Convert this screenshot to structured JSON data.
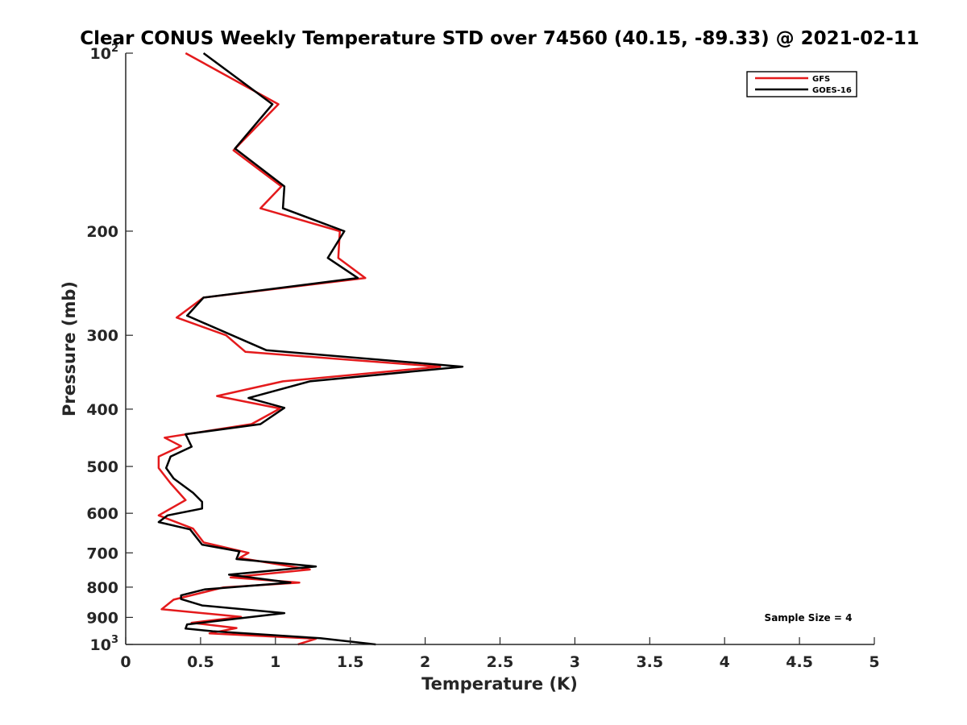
{
  "chart_data": {
    "type": "line",
    "title": "Clear CONUS Weekly Temperature STD over 74560 (40.15, -89.33) @ 2021-02-11",
    "xlabel": "Temperature (K)",
    "ylabel": "Pressure (mb)",
    "xlim": [
      0,
      5
    ],
    "ylim": [
      100,
      1000
    ],
    "y_scale": "log",
    "y_reversed": true,
    "x_ticks": [
      "0",
      "0.5",
      "1",
      "1.5",
      "2",
      "2.5",
      "3",
      "3.5",
      "4",
      "4.5",
      "5"
    ],
    "y_ticks": [
      {
        "value": 100,
        "base": "10",
        "exp": "2"
      },
      {
        "value": 200,
        "label": "200"
      },
      {
        "value": 300,
        "label": "300"
      },
      {
        "value": 400,
        "label": "400"
      },
      {
        "value": 500,
        "label": "500"
      },
      {
        "value": 600,
        "label": "600"
      },
      {
        "value": 700,
        "label": "700"
      },
      {
        "value": 800,
        "label": "800"
      },
      {
        "value": 900,
        "label": "900"
      },
      {
        "value": 1000,
        "base": "10",
        "exp": "3"
      }
    ],
    "legend_position": "top-right",
    "annotation": "Sample Size = 4",
    "series": [
      {
        "name": "GFS",
        "color": "#e41a1c",
        "points": [
          {
            "x": 0.4,
            "p": 100
          },
          {
            "x": 1.02,
            "p": 122
          },
          {
            "x": 0.72,
            "p": 146
          },
          {
            "x": 1.04,
            "p": 168
          },
          {
            "x": 0.9,
            "p": 183
          },
          {
            "x": 1.43,
            "p": 200
          },
          {
            "x": 1.42,
            "p": 222
          },
          {
            "x": 1.6,
            "p": 240
          },
          {
            "x": 0.52,
            "p": 259
          },
          {
            "x": 0.34,
            "p": 280
          },
          {
            "x": 0.67,
            "p": 300
          },
          {
            "x": 0.8,
            "p": 320
          },
          {
            "x": 2.1,
            "p": 339
          },
          {
            "x": 1.05,
            "p": 359
          },
          {
            "x": 0.61,
            "p": 380
          },
          {
            "x": 1.03,
            "p": 399
          },
          {
            "x": 0.84,
            "p": 424
          },
          {
            "x": 0.26,
            "p": 447
          },
          {
            "x": 0.37,
            "p": 462
          },
          {
            "x": 0.22,
            "p": 481
          },
          {
            "x": 0.22,
            "p": 503
          },
          {
            "x": 0.3,
            "p": 534
          },
          {
            "x": 0.4,
            "p": 570
          },
          {
            "x": 0.22,
            "p": 605
          },
          {
            "x": 0.45,
            "p": 637
          },
          {
            "x": 0.52,
            "p": 672
          },
          {
            "x": 0.82,
            "p": 700
          },
          {
            "x": 0.76,
            "p": 714
          },
          {
            "x": 1.23,
            "p": 747
          },
          {
            "x": 0.7,
            "p": 770
          },
          {
            "x": 1.16,
            "p": 786
          },
          {
            "x": 0.65,
            "p": 801
          },
          {
            "x": 0.32,
            "p": 840
          },
          {
            "x": 0.24,
            "p": 872
          },
          {
            "x": 0.77,
            "p": 898
          },
          {
            "x": 0.44,
            "p": 919
          },
          {
            "x": 0.74,
            "p": 938
          },
          {
            "x": 0.56,
            "p": 958
          },
          {
            "x": 1.27,
            "p": 978
          },
          {
            "x": 1.15,
            "p": 1000
          }
        ]
      },
      {
        "name": "GOES-16",
        "color": "#000000",
        "points": [
          {
            "x": 0.52,
            "p": 100
          },
          {
            "x": 0.98,
            "p": 122
          },
          {
            "x": 0.73,
            "p": 145
          },
          {
            "x": 1.06,
            "p": 168
          },
          {
            "x": 1.05,
            "p": 183
          },
          {
            "x": 1.46,
            "p": 200
          },
          {
            "x": 1.35,
            "p": 222
          },
          {
            "x": 1.55,
            "p": 240
          },
          {
            "x": 0.52,
            "p": 259
          },
          {
            "x": 0.41,
            "p": 278
          },
          {
            "x": 0.94,
            "p": 318
          },
          {
            "x": 2.25,
            "p": 339
          },
          {
            "x": 1.23,
            "p": 359
          },
          {
            "x": 0.82,
            "p": 383
          },
          {
            "x": 1.06,
            "p": 398
          },
          {
            "x": 0.9,
            "p": 424
          },
          {
            "x": 0.4,
            "p": 441
          },
          {
            "x": 0.44,
            "p": 463
          },
          {
            "x": 0.3,
            "p": 481
          },
          {
            "x": 0.27,
            "p": 503
          },
          {
            "x": 0.32,
            "p": 524
          },
          {
            "x": 0.45,
            "p": 554
          },
          {
            "x": 0.51,
            "p": 574
          },
          {
            "x": 0.51,
            "p": 589
          },
          {
            "x": 0.28,
            "p": 605
          },
          {
            "x": 0.22,
            "p": 621
          },
          {
            "x": 0.43,
            "p": 639
          },
          {
            "x": 0.51,
            "p": 678
          },
          {
            "x": 0.76,
            "p": 696
          },
          {
            "x": 0.74,
            "p": 717
          },
          {
            "x": 1.27,
            "p": 738
          },
          {
            "x": 0.69,
            "p": 762
          },
          {
            "x": 1.1,
            "p": 786
          },
          {
            "x": 0.53,
            "p": 807
          },
          {
            "x": 0.37,
            "p": 826
          },
          {
            "x": 0.37,
            "p": 838
          },
          {
            "x": 0.51,
            "p": 859
          },
          {
            "x": 1.06,
            "p": 885
          },
          {
            "x": 0.41,
            "p": 925
          },
          {
            "x": 0.4,
            "p": 940
          },
          {
            "x": 0.58,
            "p": 950
          },
          {
            "x": 1.3,
            "p": 976
          },
          {
            "x": 1.67,
            "p": 1000
          }
        ]
      }
    ]
  }
}
